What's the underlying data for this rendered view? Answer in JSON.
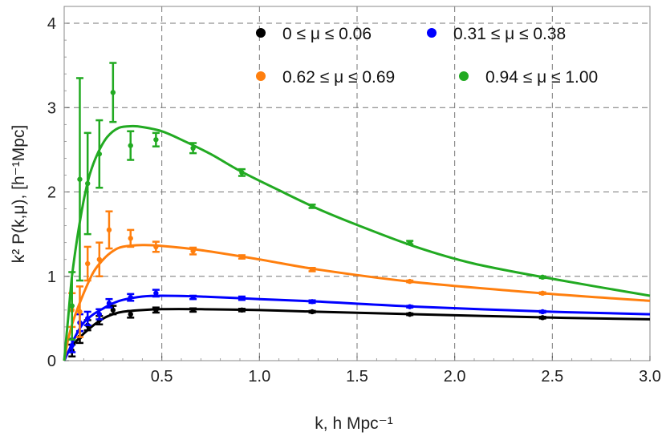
{
  "chart_data": {
    "type": "line",
    "title": "",
    "xlabel": "k, h Mpc⁻¹",
    "ylabel": "k² P(k,μ), [h⁻¹Mpc]",
    "xlim": [
      0,
      3.0
    ],
    "ylim": [
      0,
      4.2
    ],
    "x_ticks": [
      "0.5",
      "1.0",
      "1.5",
      "2.0",
      "2.5",
      "3.0"
    ],
    "y_ticks": [
      "0",
      "1",
      "2",
      "3",
      "4"
    ],
    "grid": true,
    "legend_position": "top-right",
    "series": [
      {
        "name": "0 ≤ μ ≤ 0.06",
        "color": "#000000",
        "points": [
          {
            "x": 0.04,
            "y": 0.12,
            "err": 0.07
          },
          {
            "x": 0.08,
            "y": 0.28,
            "err": 0.07
          },
          {
            "x": 0.12,
            "y": 0.42,
            "err": 0.06
          },
          {
            "x": 0.18,
            "y": 0.48,
            "err": 0.05
          },
          {
            "x": 0.25,
            "y": 0.6,
            "err": 0.05
          },
          {
            "x": 0.34,
            "y": 0.55,
            "err": 0.04
          },
          {
            "x": 0.47,
            "y": 0.6,
            "err": 0.03
          },
          {
            "x": 0.66,
            "y": 0.6,
            "err": 0.02
          },
          {
            "x": 0.91,
            "y": 0.6,
            "err": 0.015
          },
          {
            "x": 1.27,
            "y": 0.58,
            "err": 0.01
          },
          {
            "x": 1.77,
            "y": 0.55,
            "err": 0.01
          },
          {
            "x": 2.45,
            "y": 0.51,
            "err": 0.01
          }
        ],
        "curve": [
          [
            0.0,
            0.0
          ],
          [
            0.02,
            0.1
          ],
          [
            0.05,
            0.2
          ],
          [
            0.1,
            0.32
          ],
          [
            0.15,
            0.42
          ],
          [
            0.2,
            0.5
          ],
          [
            0.25,
            0.55
          ],
          [
            0.3,
            0.58
          ],
          [
            0.4,
            0.6
          ],
          [
            0.5,
            0.61
          ],
          [
            0.7,
            0.61
          ],
          [
            1.0,
            0.6
          ],
          [
            1.3,
            0.58
          ],
          [
            1.8,
            0.55
          ],
          [
            2.5,
            0.51
          ],
          [
            3.0,
            0.49
          ]
        ]
      },
      {
        "name": "0.31 ≤ μ ≤ 0.38",
        "color": "#0000ff",
        "points": [
          {
            "x": 0.04,
            "y": 0.18,
            "err": 0.08
          },
          {
            "x": 0.08,
            "y": 0.45,
            "err": 0.1
          },
          {
            "x": 0.12,
            "y": 0.5,
            "err": 0.08
          },
          {
            "x": 0.18,
            "y": 0.55,
            "err": 0.06
          },
          {
            "x": 0.23,
            "y": 0.68,
            "err": 0.05
          },
          {
            "x": 0.34,
            "y": 0.75,
            "err": 0.04
          },
          {
            "x": 0.47,
            "y": 0.8,
            "err": 0.04
          },
          {
            "x": 0.66,
            "y": 0.75,
            "err": 0.02
          },
          {
            "x": 0.91,
            "y": 0.74,
            "err": 0.02
          },
          {
            "x": 1.27,
            "y": 0.7,
            "err": 0.015
          },
          {
            "x": 1.77,
            "y": 0.64,
            "err": 0.01
          },
          {
            "x": 2.45,
            "y": 0.58,
            "err": 0.01
          }
        ],
        "curve": [
          [
            0.0,
            0.0
          ],
          [
            0.03,
            0.15
          ],
          [
            0.06,
            0.3
          ],
          [
            0.1,
            0.45
          ],
          [
            0.15,
            0.55
          ],
          [
            0.2,
            0.62
          ],
          [
            0.25,
            0.68
          ],
          [
            0.3,
            0.72
          ],
          [
            0.4,
            0.76
          ],
          [
            0.5,
            0.77
          ],
          [
            0.7,
            0.76
          ],
          [
            1.0,
            0.73
          ],
          [
            1.3,
            0.7
          ],
          [
            1.8,
            0.64
          ],
          [
            2.5,
            0.58
          ],
          [
            3.0,
            0.55
          ]
        ]
      },
      {
        "name": "0.62 ≤ μ ≤ 0.69",
        "color": "#ff7f0e",
        "points": [
          {
            "x": 0.04,
            "y": 0.6,
            "err": 0.2
          },
          {
            "x": 0.08,
            "y": 0.58,
            "err": 0.3
          },
          {
            "x": 0.12,
            "y": 1.15,
            "err": 0.2
          },
          {
            "x": 0.18,
            "y": 1.2,
            "err": 0.2
          },
          {
            "x": 0.23,
            "y": 1.55,
            "err": 0.22
          },
          {
            "x": 0.34,
            "y": 1.45,
            "err": 0.1
          },
          {
            "x": 0.47,
            "y": 1.35,
            "err": 0.06
          },
          {
            "x": 0.66,
            "y": 1.3,
            "err": 0.04
          },
          {
            "x": 0.91,
            "y": 1.23,
            "err": 0.02
          },
          {
            "x": 1.27,
            "y": 1.08,
            "err": 0.02
          },
          {
            "x": 1.77,
            "y": 0.94,
            "err": 0.01
          },
          {
            "x": 2.45,
            "y": 0.8,
            "err": 0.01
          }
        ],
        "curve": [
          [
            0.0,
            0.0
          ],
          [
            0.02,
            0.25
          ],
          [
            0.05,
            0.5
          ],
          [
            0.1,
            0.8
          ],
          [
            0.15,
            1.05
          ],
          [
            0.2,
            1.2
          ],
          [
            0.25,
            1.3
          ],
          [
            0.3,
            1.35
          ],
          [
            0.4,
            1.37
          ],
          [
            0.5,
            1.36
          ],
          [
            0.7,
            1.31
          ],
          [
            1.0,
            1.2
          ],
          [
            1.3,
            1.08
          ],
          [
            1.8,
            0.93
          ],
          [
            2.5,
            0.79
          ],
          [
            3.0,
            0.71
          ]
        ]
      },
      {
        "name": "0.94 ≤ μ ≤ 1.00",
        "color": "#22aa22",
        "points": [
          {
            "x": 0.04,
            "y": 0.65,
            "err": 0.4
          },
          {
            "x": 0.08,
            "y": 2.15,
            "err": 1.2
          },
          {
            "x": 0.12,
            "y": 2.1,
            "err": 0.6
          },
          {
            "x": 0.18,
            "y": 2.45,
            "err": 0.4
          },
          {
            "x": 0.25,
            "y": 3.18,
            "err": 0.35
          },
          {
            "x": 0.34,
            "y": 2.55,
            "err": 0.17
          },
          {
            "x": 0.47,
            "y": 2.62,
            "err": 0.08
          },
          {
            "x": 0.66,
            "y": 2.52,
            "err": 0.06
          },
          {
            "x": 0.91,
            "y": 2.23,
            "err": 0.04
          },
          {
            "x": 1.27,
            "y": 1.83,
            "err": 0.02
          },
          {
            "x": 1.77,
            "y": 1.4,
            "err": 0.02
          },
          {
            "x": 2.45,
            "y": 0.99,
            "err": 0.01
          }
        ],
        "curve": [
          [
            0.0,
            0.0
          ],
          [
            0.02,
            0.5
          ],
          [
            0.04,
            1.0
          ],
          [
            0.07,
            1.5
          ],
          [
            0.1,
            1.9
          ],
          [
            0.13,
            2.2
          ],
          [
            0.17,
            2.45
          ],
          [
            0.22,
            2.65
          ],
          [
            0.28,
            2.76
          ],
          [
            0.35,
            2.78
          ],
          [
            0.4,
            2.77
          ],
          [
            0.5,
            2.72
          ],
          [
            0.6,
            2.62
          ],
          [
            0.75,
            2.45
          ],
          [
            0.9,
            2.25
          ],
          [
            1.1,
            2.02
          ],
          [
            1.3,
            1.8
          ],
          [
            1.5,
            1.61
          ],
          [
            1.8,
            1.35
          ],
          [
            2.1,
            1.15
          ],
          [
            2.5,
            0.97
          ],
          [
            3.0,
            0.77
          ]
        ]
      }
    ]
  }
}
